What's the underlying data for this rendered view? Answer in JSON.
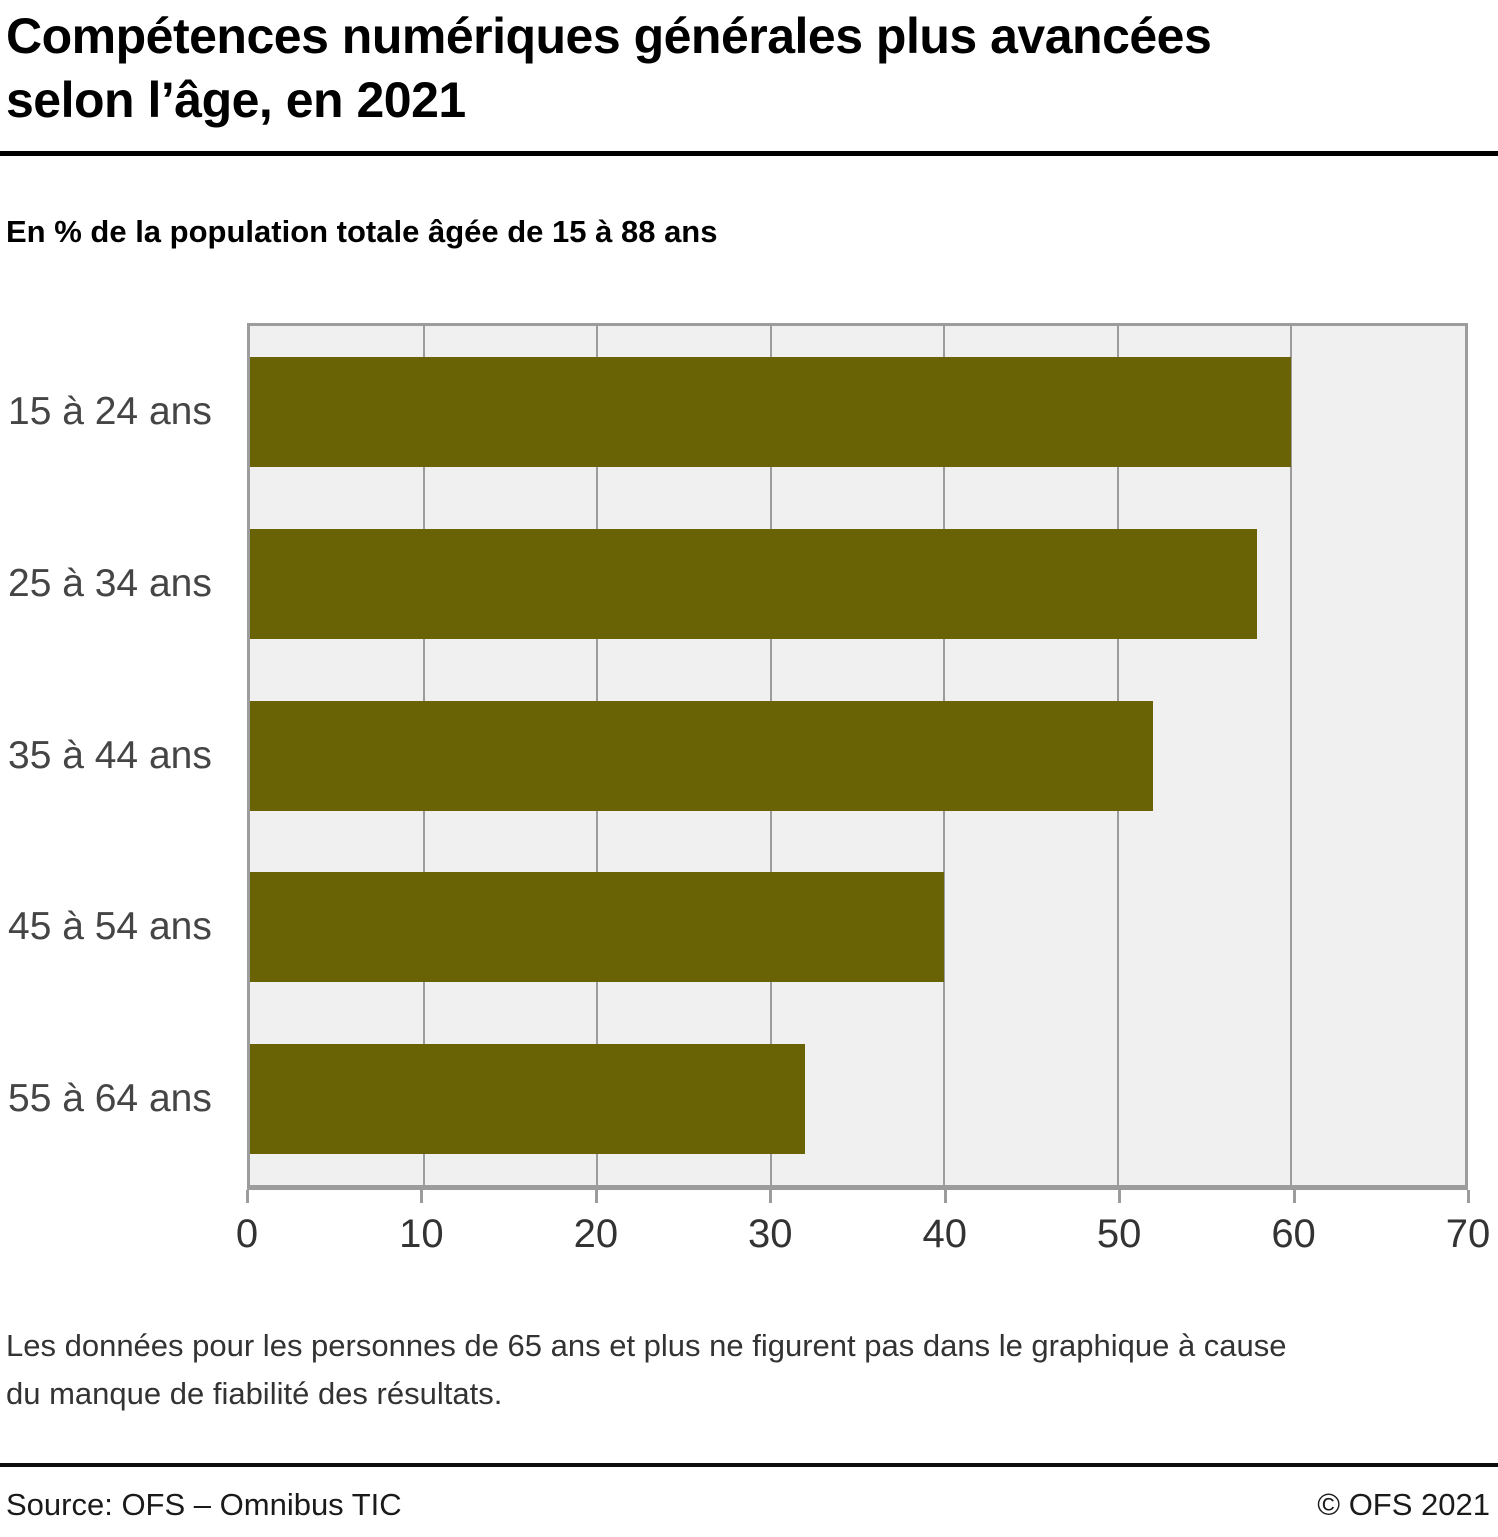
{
  "header": {
    "title_lines": [
      "Compétences numériques générales plus avancées",
      "selon l’âge, en 2021"
    ],
    "subtitle": "En % de la population totale âgée de 15 à 88 ans"
  },
  "chart_data": {
    "type": "bar",
    "orientation": "horizontal",
    "title": "Compétences numériques générales plus avancées selon l’âge, en 2021",
    "subtitle": "En % de la population totale âgée de 15 à 88 ans",
    "categories": [
      "15 à 24 ans",
      "25 à 34 ans",
      "35 à 44 ans",
      "45 à 54 ans",
      "55 à 64 ans"
    ],
    "values": [
      60,
      58,
      52,
      40,
      32
    ],
    "xlabel": "",
    "ylabel": "",
    "xlim": [
      0,
      70
    ],
    "xticks": [
      0,
      10,
      20,
      30,
      40,
      50,
      60,
      70
    ],
    "grid": "vertical",
    "legend": "none",
    "bar_color": "#696305",
    "plot_background": "#f0f0f0",
    "grid_color": "#9c9c9c"
  },
  "footnote": {
    "lines": [
      "Les données pour les personnes de 65 ans et plus ne figurent pas dans le graphique à cause",
      "du manque de fiabilité des résultats."
    ]
  },
  "footer": {
    "source": "Source: OFS – Omnibus TIC",
    "copyright": "© OFS 2021"
  }
}
